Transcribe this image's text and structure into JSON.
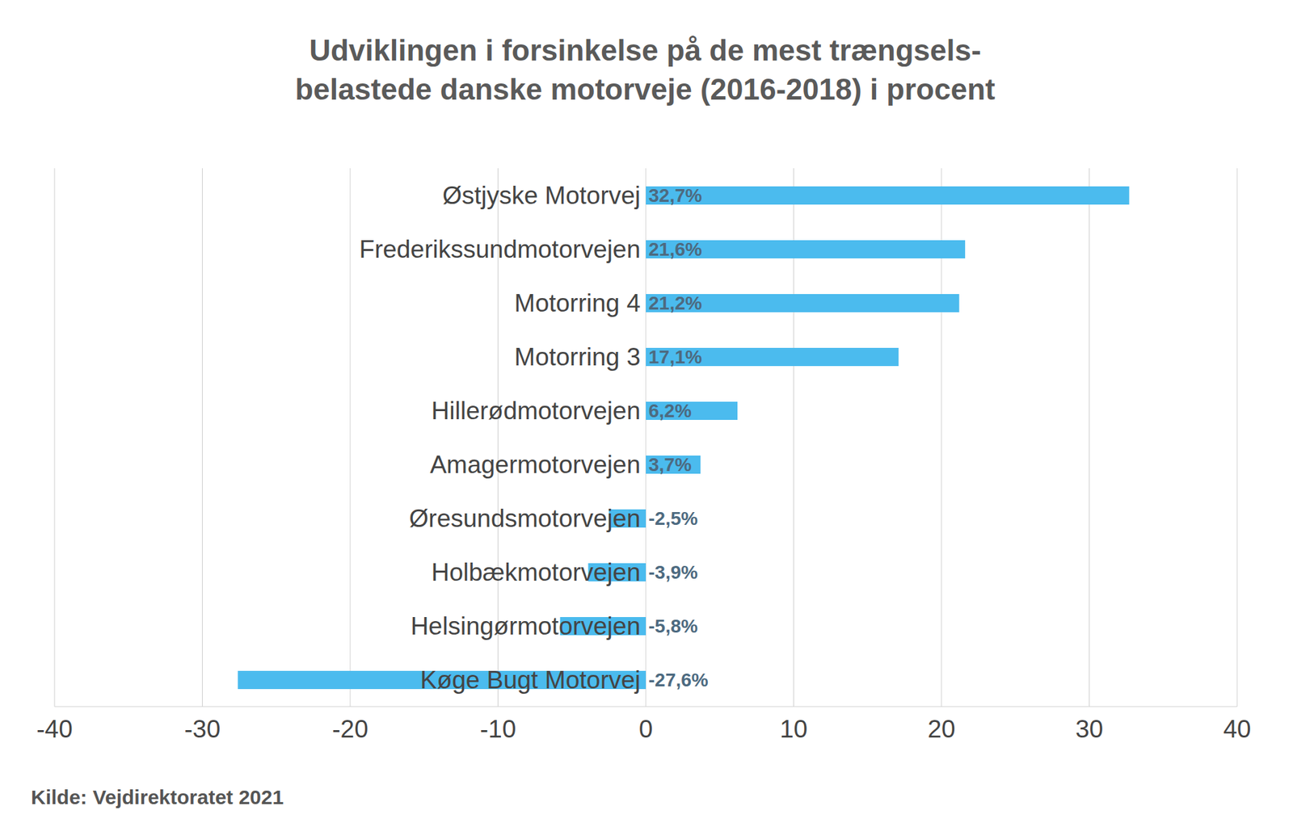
{
  "chart_data": {
    "type": "bar",
    "orientation": "horizontal",
    "title": "Udviklingen i forsinkelse på de mest trængsels-\nbelastede danske motorveje (2016-2018) i procent",
    "source": "Kilde: Vejdirektoratet 2021",
    "categories": [
      "Østjyske Motorvej",
      "Frederikssundmotorvejen",
      "Motorring 4",
      "Motorring 3",
      "Hillerødmotorvejen",
      "Amagermotorvejen",
      "Øresundsmotorvejen",
      "Holbækmotorvejen",
      "Helsingørmotorvejen",
      "Køge Bugt Motorvej"
    ],
    "values": [
      32.7,
      21.6,
      21.2,
      17.1,
      6.2,
      3.7,
      -2.5,
      -3.9,
      -5.8,
      -27.6
    ],
    "value_labels": [
      "32,7%",
      "21,6%",
      "21,2%",
      "17,1%",
      "6,2%",
      "3,7%",
      "-2,5%",
      "-3,9%",
      "-5,8%",
      "-27,6%"
    ],
    "data_labels": true,
    "color": "#4bbbee",
    "xlim": [
      -40,
      40
    ],
    "xticks": [
      -40,
      -30,
      -20,
      -10,
      0,
      10,
      20,
      30,
      40
    ],
    "grid": true
  }
}
